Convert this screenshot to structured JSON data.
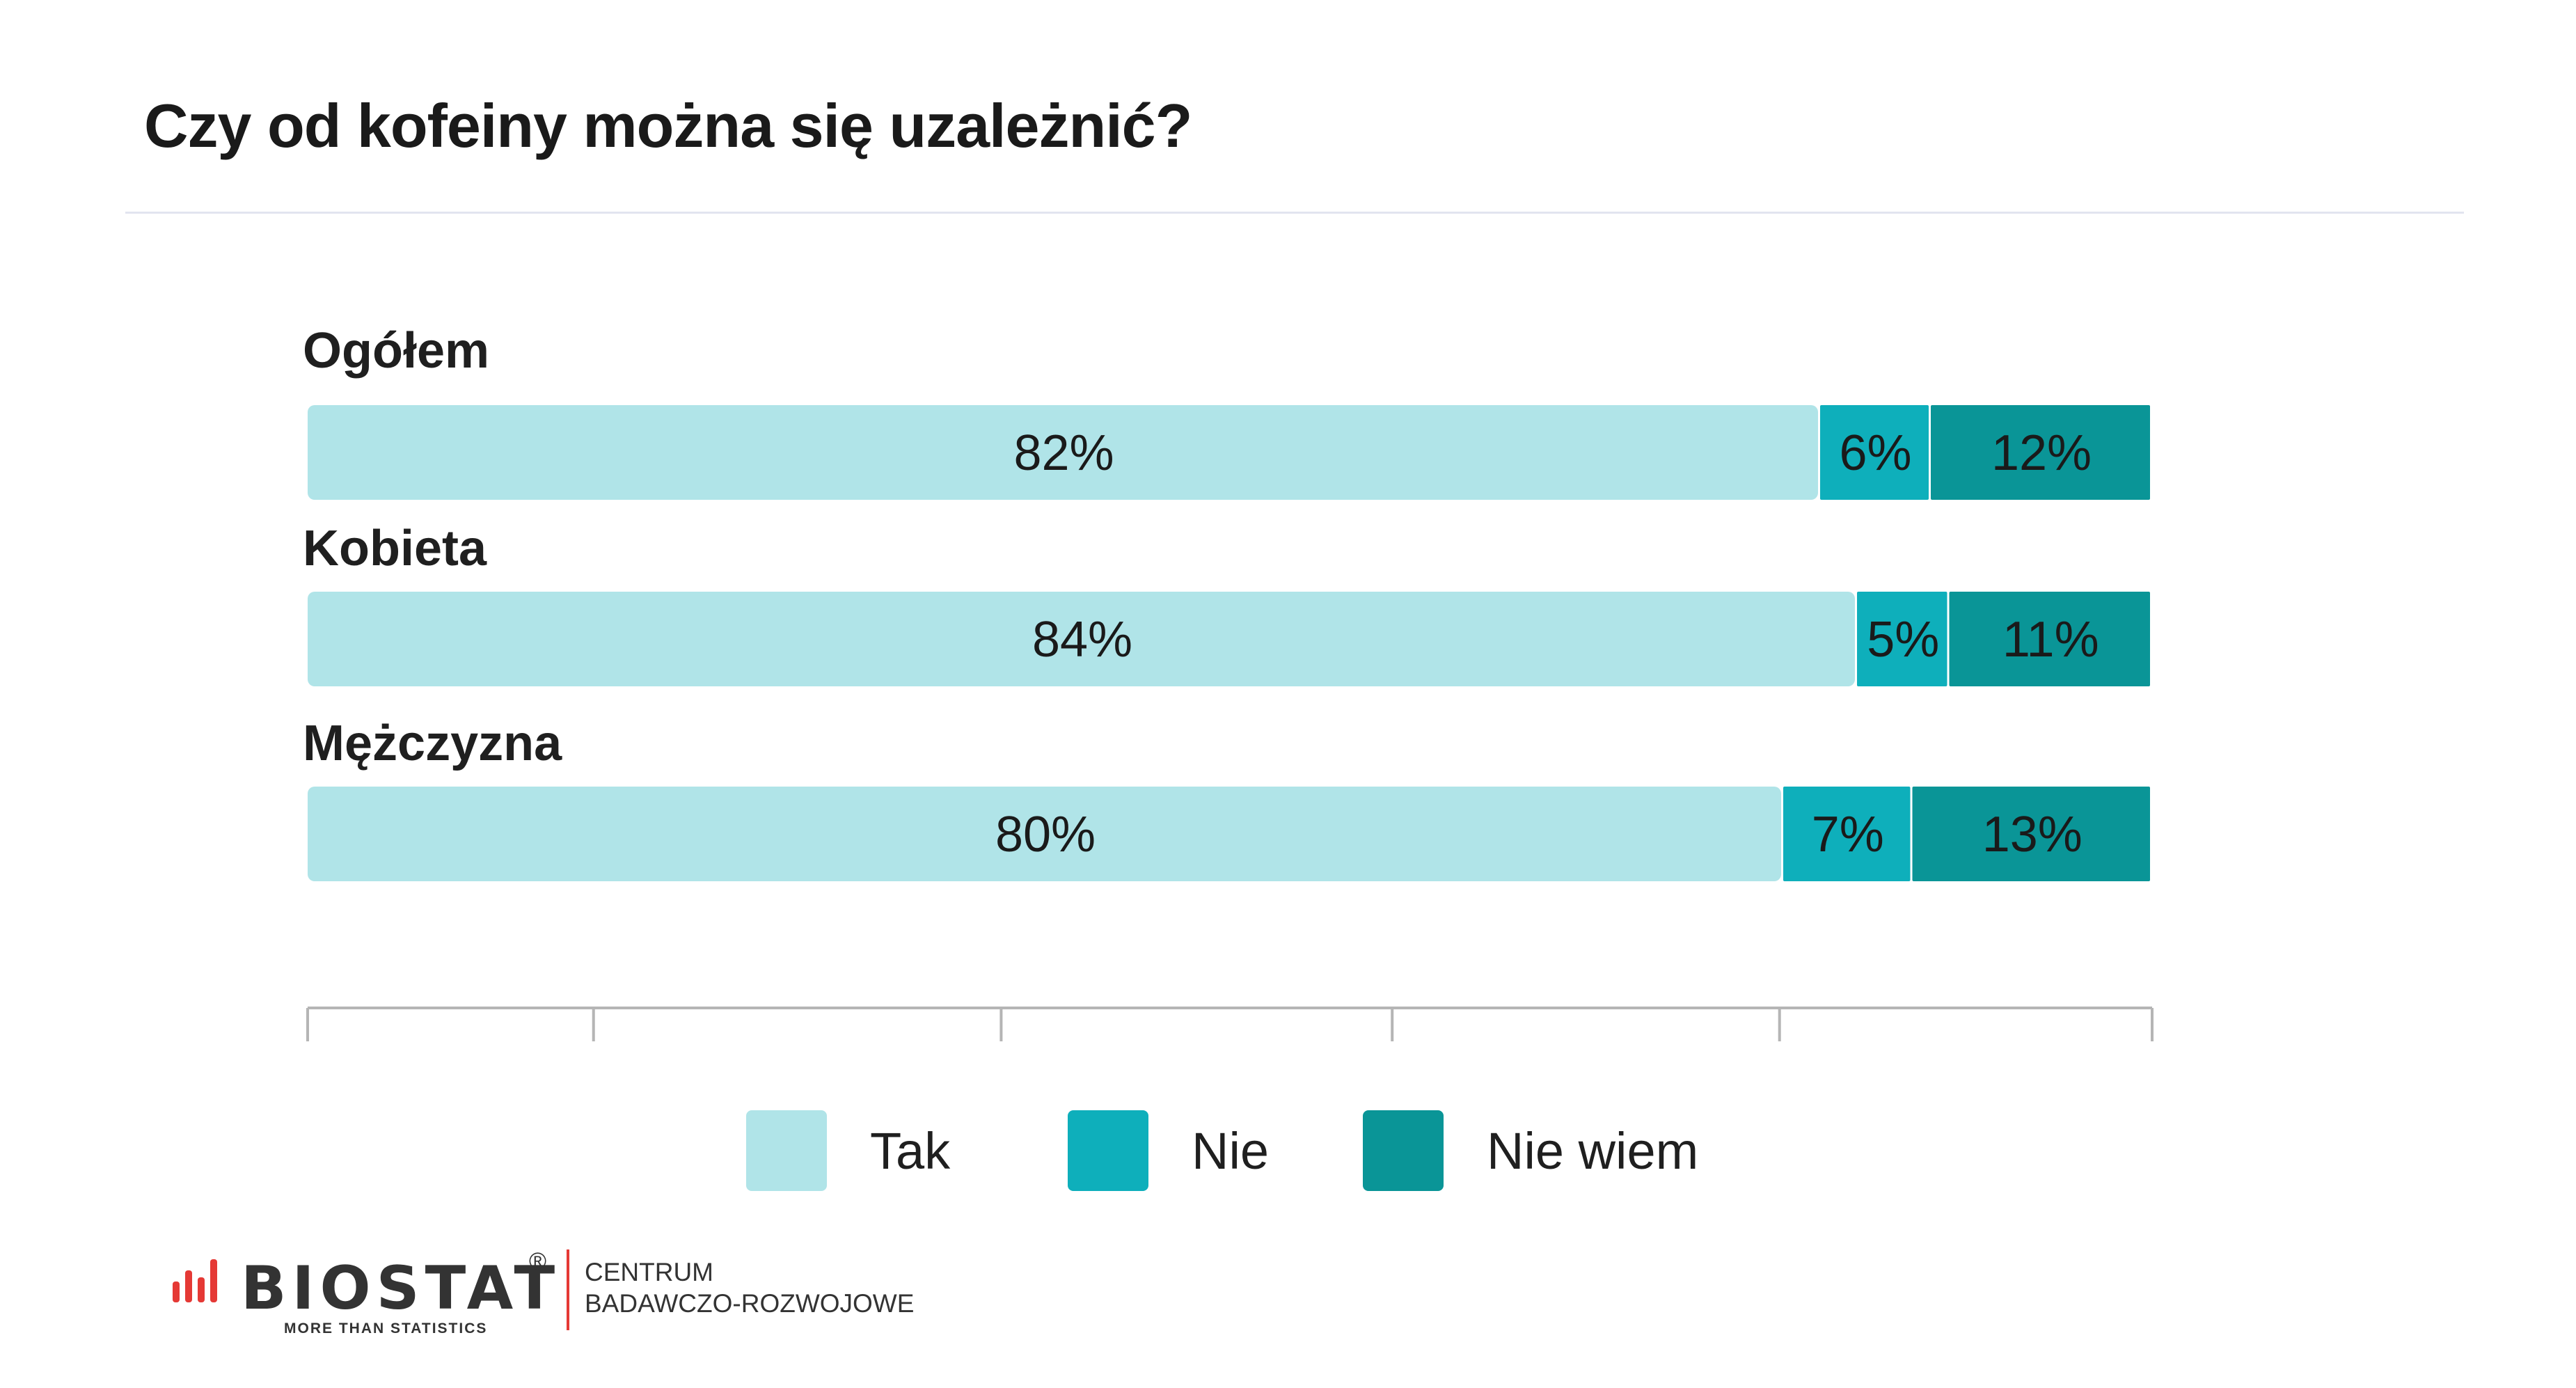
{
  "title": "Czy od kofeiny można się uzależnić?",
  "chart_data": {
    "type": "bar",
    "orientation": "horizontal",
    "stacked": true,
    "categories": [
      "Ogółem",
      "Kobieta",
      "Mężczyzna"
    ],
    "series": [
      {
        "name": "Tak",
        "values": [
          82,
          84,
          80
        ],
        "labels": [
          "82%",
          "84%",
          "80%"
        ],
        "color": "#b0e4e8"
      },
      {
        "name": "Nie",
        "values": [
          6,
          5,
          7
        ],
        "labels": [
          "6%",
          "5%",
          "7%"
        ],
        "color": "#0eafbb"
      },
      {
        "name": "Nie wiem",
        "values": [
          12,
          11,
          13
        ],
        "labels": [
          "12%",
          "11%",
          "13%"
        ],
        "color": "#0a9597"
      }
    ],
    "xlim": [
      0,
      100
    ],
    "grid": false,
    "legend_position": "bottom"
  },
  "legend": {
    "items": [
      {
        "label": "Tak",
        "color": "#b0e4e8"
      },
      {
        "label": "Nie",
        "color": "#0eafbb"
      },
      {
        "label": "Nie wiem",
        "color": "#0a9597"
      }
    ]
  },
  "logo": {
    "name": "BIOSTAT",
    "registered": "®",
    "tagline": "MORE THAN STATISTICS",
    "center_line1": "CENTRUM",
    "center_line2": "BADAWCZO-ROZWOJOWE",
    "accent": "#e53935"
  }
}
